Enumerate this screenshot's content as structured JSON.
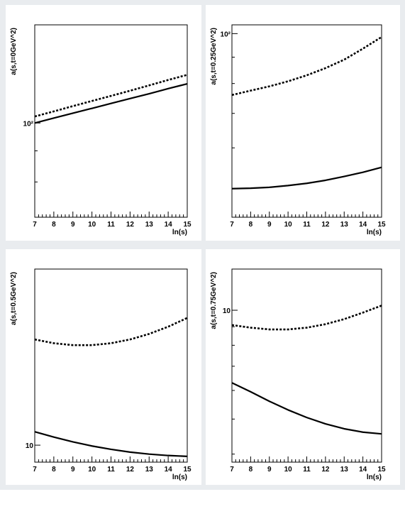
{
  "colors": {
    "background": "#e9ecef",
    "pad": "#ffffff",
    "axis": "#000000",
    "curve": "#000000"
  },
  "chart_data": [
    {
      "type": "line",
      "ylabel": "a(s,t=0GeV^2)",
      "xlabel": "ln(s)",
      "xlim": [
        7,
        15
      ],
      "ylim": [
        70,
        145
      ],
      "yscale": "log",
      "x_ticks": [
        "7",
        "8",
        "9",
        "10",
        "11",
        "12",
        "13",
        "14",
        "15"
      ],
      "y_tick_labels": [
        {
          "value": 100,
          "text": "10²"
        }
      ],
      "series": [
        {
          "style": "dashed",
          "x": [
            7,
            8,
            9,
            10,
            11,
            12,
            13,
            14,
            15
          ],
          "y": [
            102.5,
            104.5,
            106.6,
            108.7,
            110.8,
            113,
            115.3,
            117.7,
            120
          ]
        },
        {
          "style": "solid",
          "x": [
            7,
            8,
            9,
            10,
            11,
            12,
            13,
            14,
            15
          ],
          "y": [
            100,
            101.9,
            103.8,
            105.7,
            107.7,
            109.7,
            111.7,
            113.9,
            116
          ]
        }
      ],
      "grid": false
    },
    {
      "type": "line",
      "ylabel": "a(s,t=0.25GeV^2)",
      "xlabel": "ln(s)",
      "xlim": [
        7,
        15
      ],
      "ylim": [
        44,
        104
      ],
      "yscale": "log",
      "x_ticks": [
        "7",
        "8",
        "9",
        "10",
        "11",
        "12",
        "13",
        "14",
        "15"
      ],
      "y_tick_labels": [
        {
          "value": 100,
          "text": "10²"
        }
      ],
      "series": [
        {
          "style": "dashed",
          "x": [
            7,
            8,
            9,
            10,
            11,
            12,
            13,
            14,
            15
          ],
          "y": [
            76,
            77.5,
            79,
            80.8,
            83,
            85.7,
            89,
            93.5,
            98.5
          ]
        },
        {
          "style": "solid",
          "x": [
            7,
            8,
            9,
            10,
            11,
            12,
            13,
            14,
            15
          ],
          "y": [
            50,
            50.1,
            50.3,
            50.7,
            51.2,
            51.9,
            52.8,
            53.8,
            55
          ]
        }
      ],
      "grid": false
    },
    {
      "type": "line",
      "ylabel": "a(s,t=0.5GeV^2)",
      "xlabel": "ln(s)",
      "xlim": [
        7,
        15
      ],
      "ylim": [
        9.4,
        19
      ],
      "yscale": "log",
      "x_ticks": [
        "7",
        "8",
        "9",
        "10",
        "11",
        "12",
        "13",
        "14",
        "15"
      ],
      "y_tick_labels": [
        {
          "value": 10,
          "text": "10"
        }
      ],
      "series": [
        {
          "style": "dashed",
          "x": [
            7,
            8,
            9,
            10,
            11,
            12,
            13,
            14,
            15
          ],
          "y": [
            14.7,
            14.5,
            14.4,
            14.4,
            14.5,
            14.7,
            15,
            15.4,
            15.9
          ]
        },
        {
          "style": "solid",
          "x": [
            7,
            8,
            9,
            10,
            11,
            12,
            13,
            14,
            15
          ],
          "y": [
            10.5,
            10.3,
            10.12,
            9.97,
            9.85,
            9.75,
            9.68,
            9.63,
            9.6
          ]
        }
      ],
      "grid": false
    },
    {
      "type": "line",
      "ylabel": "a(s,t=0.75GeV^2)",
      "xlabel": "ln(s)",
      "xlim": [
        7,
        15
      ],
      "ylim": [
        3.8,
        13
      ],
      "yscale": "log",
      "x_ticks": [
        "7",
        "8",
        "9",
        "10",
        "11",
        "12",
        "13",
        "14",
        "15"
      ],
      "y_tick_labels": [
        {
          "value": 10,
          "text": "10"
        }
      ],
      "series": [
        {
          "style": "dashed",
          "x": [
            7,
            8,
            9,
            10,
            11,
            12,
            13,
            14,
            15
          ],
          "y": [
            9.1,
            8.95,
            8.85,
            8.85,
            8.95,
            9.15,
            9.45,
            9.85,
            10.3
          ]
        },
        {
          "style": "solid",
          "x": [
            7,
            8,
            9,
            10,
            11,
            12,
            13,
            14,
            15
          ],
          "y": [
            6.3,
            5.95,
            5.6,
            5.3,
            5.05,
            4.85,
            4.7,
            4.6,
            4.55
          ]
        }
      ],
      "grid": false
    }
  ]
}
